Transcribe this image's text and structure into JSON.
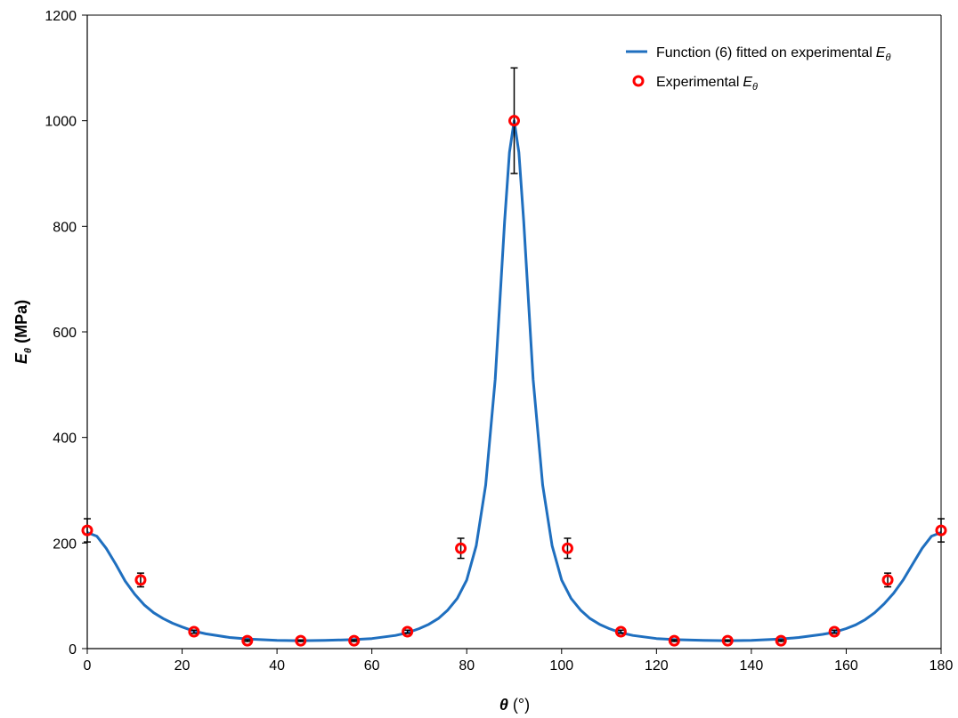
{
  "chart_data": {
    "type": "scatter",
    "xlabel": {
      "symbol": "θ",
      "unit": "(°)"
    },
    "ylabel": {
      "symbol": "E",
      "subscript": "θ",
      "unit": "(MPa)"
    },
    "xlim": [
      0,
      180
    ],
    "ylim": [
      0,
      1200
    ],
    "xticks": [
      0,
      20,
      40,
      60,
      80,
      100,
      120,
      140,
      160,
      180
    ],
    "yticks": [
      0,
      200,
      400,
      600,
      800,
      1000,
      1200
    ],
    "grid": false,
    "legend_position": "top-right",
    "series": [
      {
        "name": "Function (6) fitted on experimental",
        "name_symbol": "E",
        "name_subscript": "θ",
        "kind": "line",
        "color": "#1f6fbf",
        "x": [
          0,
          2,
          4,
          6,
          8,
          10,
          12,
          14,
          16,
          18,
          20,
          22.5,
          25,
          30,
          34,
          40,
          45,
          50,
          56,
          60,
          65,
          67.5,
          70,
          72,
          74,
          76,
          78,
          80,
          82,
          84,
          86,
          87,
          88,
          89,
          90,
          91,
          92,
          93,
          94,
          96,
          98,
          100,
          102,
          104,
          106,
          108,
          110,
          112.5,
          115,
          120,
          124,
          130,
          135,
          140,
          146,
          150,
          155,
          157.5,
          160,
          162,
          164,
          166,
          168,
          170,
          172,
          174,
          176,
          178,
          180
        ],
        "y": [
          220,
          213,
          190,
          160,
          128,
          103,
          83,
          68,
          57,
          48,
          41,
          33,
          28,
          21,
          18,
          15.5,
          15,
          15.5,
          17,
          19,
          25,
          30,
          38,
          46,
          57,
          73,
          95,
          130,
          195,
          310,
          510,
          660,
          810,
          940,
          1000,
          940,
          810,
          660,
          510,
          310,
          195,
          130,
          95,
          73,
          57,
          46,
          38,
          30,
          25,
          19,
          17,
          15.5,
          15,
          15.5,
          18,
          21,
          27,
          31,
          38,
          45,
          55,
          68,
          85,
          105,
          130,
          160,
          190,
          213,
          220
        ]
      },
      {
        "name": "Experimental",
        "name_symbol": "E",
        "name_subscript": "θ",
        "kind": "marker",
        "color": "#ff0000",
        "x": [
          0,
          11.25,
          22.5,
          33.75,
          45,
          56.25,
          67.5,
          78.75,
          90,
          101.25,
          112.5,
          123.75,
          135,
          146.25,
          157.5,
          168.75,
          180
        ],
        "y": [
          224,
          130,
          32,
          15,
          15,
          15,
          32,
          190,
          1000,
          190,
          32,
          15,
          15,
          15,
          32,
          130,
          224
        ],
        "error": [
          22,
          13,
          3,
          1.5,
          1.5,
          1.5,
          3,
          19,
          100,
          19,
          3,
          1.5,
          1.5,
          1.5,
          3,
          13,
          22
        ]
      }
    ]
  }
}
